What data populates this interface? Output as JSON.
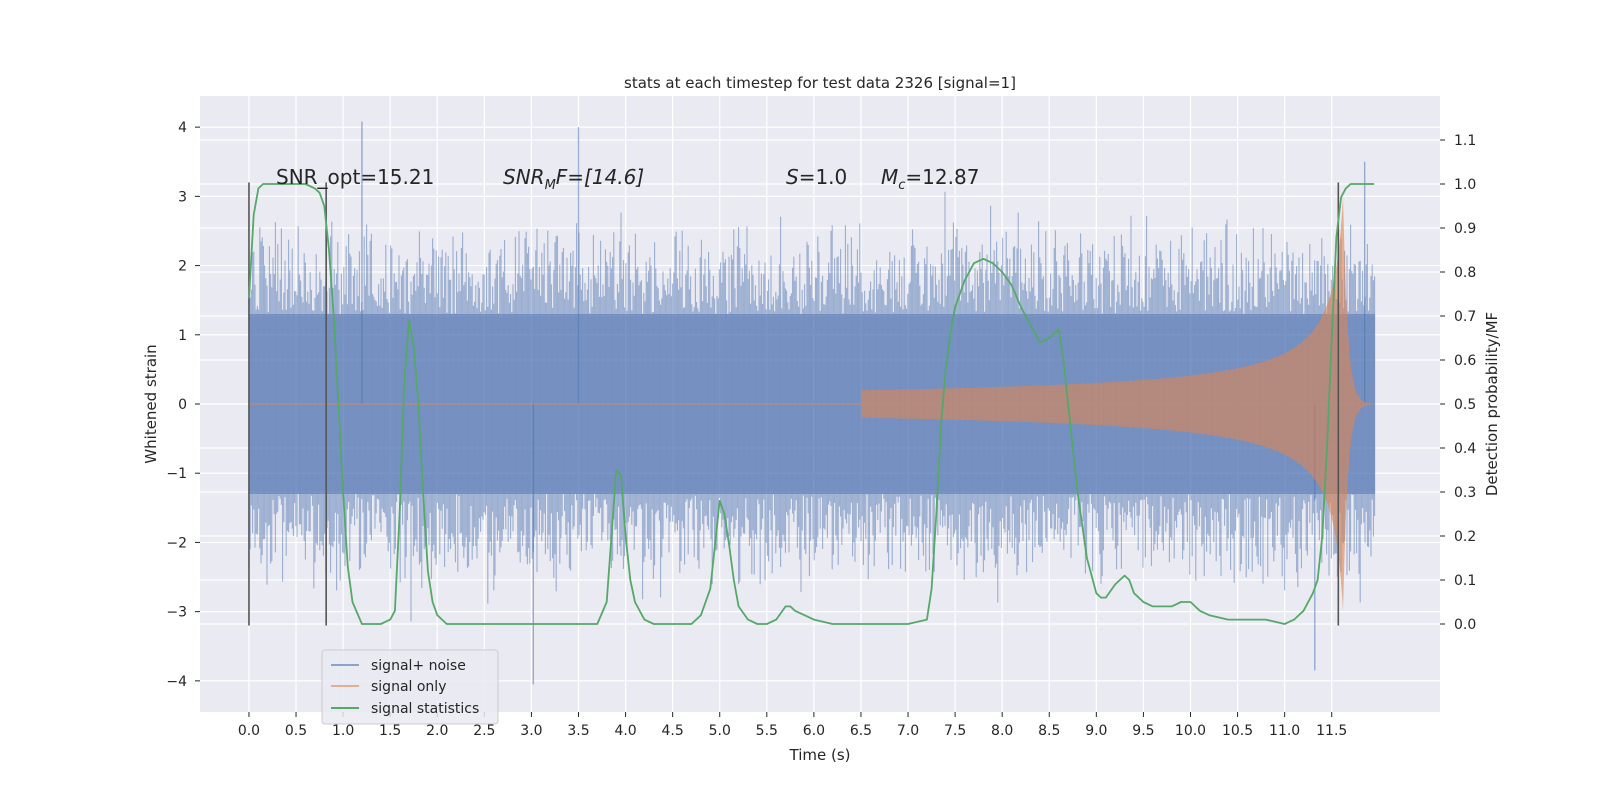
{
  "chart_data": {
    "type": "line",
    "title": "stats at each timestep for test data 2326 [signal=1]",
    "xlabel": "Time (s)",
    "ylabel": "Whitened strain",
    "y2label": "Detection probability/MF",
    "xlim": [
      -0.52,
      12.65
    ],
    "ylim": [
      -4.45,
      4.45
    ],
    "y2lim": [
      -0.2,
      1.2
    ],
    "grid": true,
    "legend_position": "lower-left",
    "x_ticks": [
      "0.0",
      "0.5",
      "1.0",
      "1.5",
      "2.0",
      "2.5",
      "3.0",
      "3.5",
      "4.0",
      "4.5",
      "5.0",
      "5.5",
      "6.0",
      "6.5",
      "7.0",
      "7.5",
      "8.0",
      "8.5",
      "9.0",
      "9.5",
      "10.0",
      "10.5",
      "11.0",
      "11.5"
    ],
    "y_ticks": [
      "4",
      "3",
      "2",
      "1",
      "0",
      "−1",
      "−2",
      "−3",
      "−4"
    ],
    "y2_ticks": [
      "1.1",
      "1.0",
      "0.9",
      "0.8",
      "0.7",
      "0.6",
      "0.5",
      "0.4",
      "0.3",
      "0.2",
      "0.1",
      "0.0"
    ],
    "annotations": {
      "snr_opt": "SNR_opt=15.21",
      "snr_mf_prefix": "SNR",
      "snr_mf_sub": "M",
      "snr_mf_suffix": "F=[14.6]",
      "s_var": "S",
      "s_value": "=1.0",
      "mc_var": "M",
      "mc_sub": "c",
      "mc_value": "=12.87"
    },
    "colors": {
      "noise": "#4c72b0",
      "signal": "#dd8452",
      "stats": "#55a868",
      "background": "#eaeaf2",
      "grid": "#ffffff",
      "marker": "#555555"
    },
    "vertical_markers": [
      0.0,
      0.82,
      11.57
    ],
    "series": [
      {
        "name": "signal+ noise",
        "envelope": {
          "t": [
            0.0,
            11.96
          ],
          "core_low": -1.3,
          "core_high": 1.3,
          "typical_peak": 2.4,
          "max_peak": 4.08,
          "min_peak": -4.05
        }
      },
      {
        "name": "signal only",
        "chirp": {
          "t_start": 6.5,
          "t_merger": 11.62,
          "t_end": 11.96,
          "peak_amplitude": 3.0
        }
      },
      {
        "name": "signal statistics",
        "axis": "right",
        "x": [
          0.0,
          0.05,
          0.1,
          0.15,
          0.2,
          0.3,
          0.4,
          0.5,
          0.6,
          0.7,
          0.75,
          0.8,
          0.85,
          0.9,
          0.95,
          1.0,
          1.05,
          1.1,
          1.2,
          1.3,
          1.4,
          1.5,
          1.55,
          1.6,
          1.65,
          1.7,
          1.75,
          1.8,
          1.85,
          1.9,
          1.95,
          2.0,
          2.1,
          2.2,
          2.5,
          3.0,
          3.5,
          3.7,
          3.8,
          3.85,
          3.9,
          3.95,
          4.0,
          4.05,
          4.1,
          4.2,
          4.3,
          4.5,
          4.7,
          4.8,
          4.9,
          5.0,
          5.05,
          5.1,
          5.15,
          5.2,
          5.3,
          5.4,
          5.5,
          5.6,
          5.7,
          5.75,
          5.8,
          5.9,
          6.0,
          6.2,
          6.4,
          6.6,
          6.8,
          7.0,
          7.2,
          7.25,
          7.3,
          7.35,
          7.4,
          7.45,
          7.5,
          7.6,
          7.7,
          7.8,
          7.9,
          8.0,
          8.1,
          8.2,
          8.3,
          8.4,
          8.5,
          8.6,
          8.65,
          8.7,
          8.8,
          8.9,
          9.0,
          9.05,
          9.1,
          9.2,
          9.3,
          9.35,
          9.4,
          9.5,
          9.6,
          9.7,
          9.8,
          9.9,
          10.0,
          10.1,
          10.2,
          10.4,
          10.6,
          10.8,
          11.0,
          11.1,
          11.2,
          11.3,
          11.35,
          11.4,
          11.45,
          11.5,
          11.55,
          11.6,
          11.65,
          11.7,
          11.8,
          11.9,
          11.95
        ],
        "values": [
          0.74,
          0.93,
          0.99,
          1.0,
          1.0,
          1.0,
          1.0,
          1.0,
          1.0,
          0.99,
          0.98,
          0.95,
          0.85,
          0.7,
          0.5,
          0.3,
          0.13,
          0.05,
          0.0,
          0.0,
          0.0,
          0.01,
          0.03,
          0.25,
          0.55,
          0.69,
          0.63,
          0.5,
          0.3,
          0.12,
          0.05,
          0.02,
          0.0,
          0.0,
          0.0,
          0.0,
          0.0,
          0.0,
          0.05,
          0.2,
          0.35,
          0.34,
          0.2,
          0.1,
          0.05,
          0.01,
          0.0,
          0.0,
          0.0,
          0.02,
          0.08,
          0.28,
          0.25,
          0.18,
          0.1,
          0.04,
          0.01,
          0.0,
          0.0,
          0.01,
          0.04,
          0.04,
          0.03,
          0.02,
          0.01,
          0.0,
          0.0,
          0.0,
          0.0,
          0.0,
          0.01,
          0.08,
          0.25,
          0.45,
          0.58,
          0.66,
          0.72,
          0.78,
          0.82,
          0.83,
          0.82,
          0.8,
          0.77,
          0.72,
          0.68,
          0.64,
          0.65,
          0.67,
          0.6,
          0.5,
          0.3,
          0.15,
          0.07,
          0.06,
          0.06,
          0.09,
          0.11,
          0.1,
          0.07,
          0.05,
          0.04,
          0.04,
          0.04,
          0.05,
          0.05,
          0.03,
          0.02,
          0.01,
          0.01,
          0.01,
          0.0,
          0.01,
          0.03,
          0.07,
          0.1,
          0.2,
          0.4,
          0.65,
          0.88,
          0.97,
          0.99,
          1.0,
          1.0,
          1.0,
          1.0
        ]
      }
    ]
  }
}
